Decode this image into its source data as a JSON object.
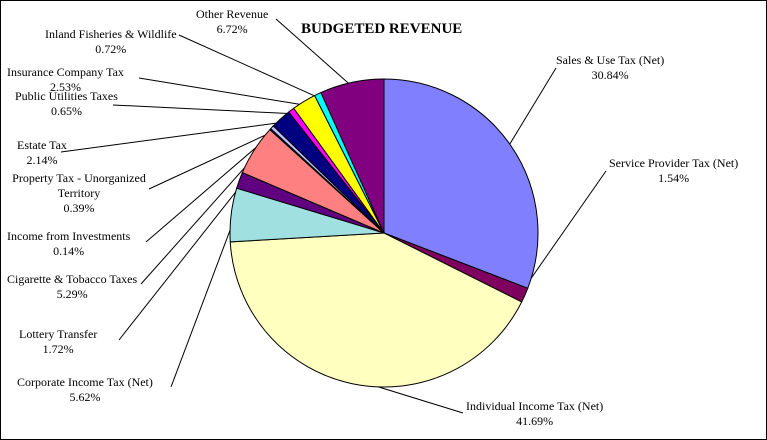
{
  "chart_data": {
    "type": "pie",
    "title": "BUDGETED REVENUE",
    "slices": [
      {
        "label": "Sales & Use Tax (Net)",
        "value": 30.84,
        "value_label": "30.84%",
        "color": "#8080ff"
      },
      {
        "label": "Service Provider Tax (Net)",
        "value": 1.54,
        "value_label": "1.54%",
        "color": "#800060"
      },
      {
        "label": "Individual Income Tax (Net)",
        "value": 41.69,
        "value_label": "41.69%",
        "color": "#ffffc0"
      },
      {
        "label": "Corporate Income Tax (Net)",
        "value": 5.62,
        "value_label": "5.62%",
        "color": "#a0e0e0"
      },
      {
        "label": "Lottery Transfer",
        "value": 1.72,
        "value_label": "1.72%",
        "color": "#600080"
      },
      {
        "label": "Cigarette & Tobacco Taxes",
        "value": 5.29,
        "value_label": "5.29%",
        "color": "#ff8080"
      },
      {
        "label": "Income from Investments",
        "value": 0.14,
        "value_label": "0.14%",
        "color": "#0060c0"
      },
      {
        "label": "Property Tax - Unorganized Territory",
        "value": 0.39,
        "value_label": "0.39%",
        "color": "#c0c0ff"
      },
      {
        "label": "Estate Tax",
        "value": 2.14,
        "value_label": "2.14%",
        "color": "#000080"
      },
      {
        "label": "Public Utilities Taxes",
        "value": 0.65,
        "value_label": "0.65%",
        "color": "#ff00ff"
      },
      {
        "label": "Insurance Company Tax",
        "value": 2.53,
        "value_label": "2.53%",
        "color": "#ffff00"
      },
      {
        "label": "Inland Fisheries & Wildlife",
        "value": 0.72,
        "value_label": "0.72%",
        "color": "#00ffff"
      },
      {
        "label": "Other Revenue",
        "value": 6.72,
        "value_label": "6.72%",
        "color": "#800080"
      }
    ],
    "start_angle": "12 o'clock",
    "direction": "clockwise",
    "legend": "none",
    "grid": false
  }
}
